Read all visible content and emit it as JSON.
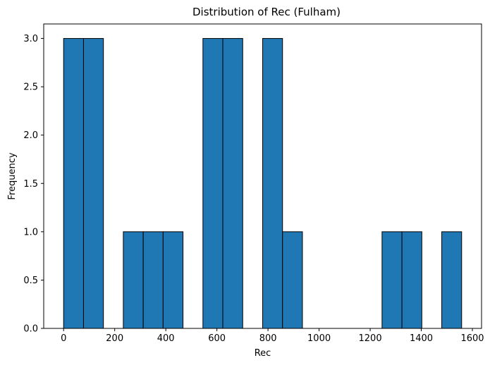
{
  "chart_data": {
    "type": "bar",
    "title": "Distribution of Rec (Fulham)",
    "xlabel": "Rec",
    "ylabel": "Frequency",
    "bin_edges": [
      0,
      77.9,
      155.8,
      233.7,
      311.6,
      389.5,
      467.4,
      545.3,
      623.2,
      701.1,
      779.0,
      856.9,
      934.8,
      1012.7,
      1090.6,
      1168.5,
      1246.4,
      1324.3,
      1402.2,
      1480.1,
      1558.0
    ],
    "values": [
      3,
      3,
      0,
      1,
      1,
      1,
      0,
      3,
      3,
      0,
      3,
      1,
      0,
      0,
      0,
      0,
      1,
      1,
      0,
      1
    ],
    "xlim": [
      -77.9,
      1635.9
    ],
    "ylim": [
      0,
      3.15
    ],
    "xticks": [
      0,
      200,
      400,
      600,
      800,
      1000,
      1200,
      1400,
      1600
    ],
    "xtick_labels": [
      "0",
      "200",
      "400",
      "600",
      "800",
      "1000",
      "1200",
      "1400",
      "1600"
    ],
    "yticks": [
      0,
      0.5,
      1.0,
      1.5,
      2.0,
      2.5,
      3.0
    ],
    "ytick_labels": [
      "0.0",
      "0.5",
      "1.0",
      "1.5",
      "2.0",
      "2.5",
      "3.0"
    ],
    "grid": false,
    "colors": {
      "bar_fill": "#1f77b4",
      "bar_edge": "#000000",
      "axis": "#000000"
    }
  }
}
